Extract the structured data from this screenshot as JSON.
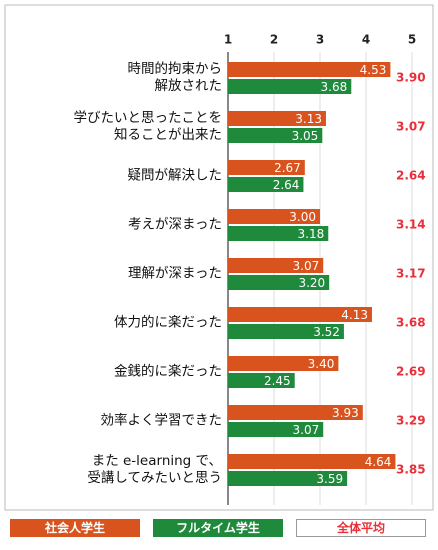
{
  "chart_data": {
    "type": "bar",
    "orientation": "horizontal",
    "categories": [
      "時間的拘束から\n解放された",
      "学びたいと思ったことを\n知ることが出来た",
      "疑問が解決した",
      "考えが深まった",
      "理解が深まった",
      "体力的に楽だった",
      "金銭的に楽だった",
      "効率よく学習できた",
      "また e-learning で、\n受講してみたいと思う"
    ],
    "series": [
      {
        "name": "社会人学生",
        "color": "#d9531e",
        "values": [
          4.53,
          3.13,
          2.67,
          3,
          3.07,
          4.13,
          3.4,
          3.93,
          4.64
        ],
        "value_labels": [
          "4.53",
          "3.13",
          "2.67",
          "3.00",
          "3.07",
          "4.13",
          "3.40",
          "3.93",
          "4.64"
        ]
      },
      {
        "name": "フルタイム学生",
        "color": "#1f8a3c",
        "values": [
          3.68,
          3.05,
          2.64,
          3.18,
          3.2,
          3.52,
          2.45,
          3.07,
          3.59
        ],
        "value_labels": [
          "3.68",
          "3.05",
          "2.64",
          "3.18",
          "3.20",
          "3.52",
          "2.45",
          "3.07",
          "3.59"
        ]
      },
      {
        "name": "全体平均",
        "color": "#e8303a",
        "style": "text",
        "values": [
          3.9,
          3.07,
          2.64,
          3.14,
          3.17,
          3.68,
          2.69,
          3.29,
          3.85
        ],
        "value_labels": [
          "3.90",
          "3.07",
          "2.64",
          "3.14",
          "3.17",
          "3.68",
          "2.69",
          "3.29",
          "3.85"
        ]
      }
    ],
    "xlim": [
      1,
      5
    ],
    "xticks": [
      1,
      2,
      3,
      4,
      5
    ],
    "grid": true,
    "legend": "bottom"
  }
}
